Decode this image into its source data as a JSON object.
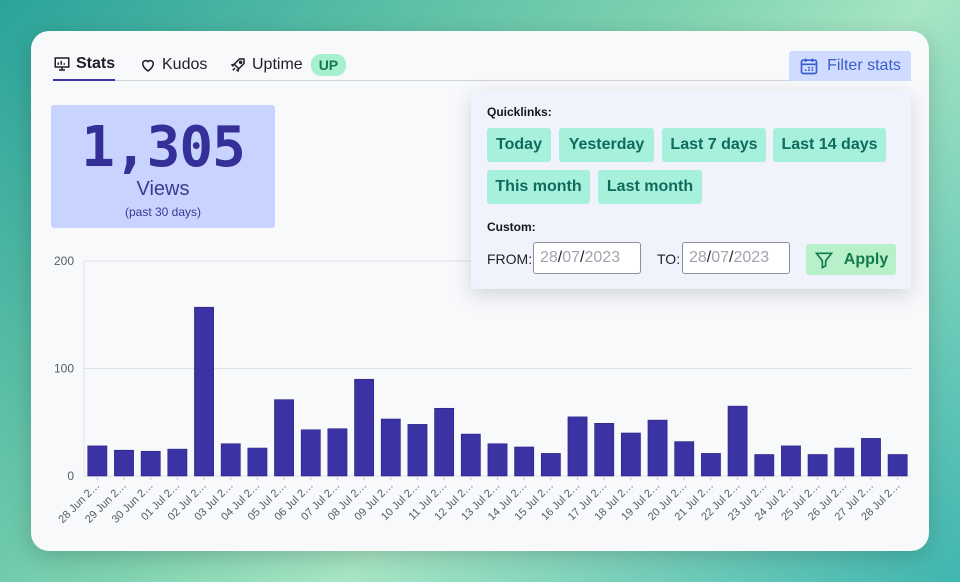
{
  "tabs": [
    {
      "label": "Stats",
      "icon": "presentation-chart-icon",
      "active": true
    },
    {
      "label": "Kudos",
      "icon": "heart-icon"
    },
    {
      "label": "Uptime",
      "icon": "rocket-icon",
      "badge": "UP"
    }
  ],
  "filter_button": {
    "label": "Filter stats",
    "icon": "calendar-icon"
  },
  "summary": {
    "value": "1,305",
    "label": "Views",
    "sub": "(past 30 days)"
  },
  "filter_panel": {
    "quicklinks_title": "Quicklinks:",
    "quicklinks": [
      "Today",
      "Yesterday",
      "Last 7 days",
      "Last 14 days",
      "This month",
      "Last month"
    ],
    "custom_title": "Custom:",
    "from_label": "FROM:",
    "to_label": "TO:",
    "from": {
      "dd": "28",
      "mm": "07",
      "yyyy": "2023"
    },
    "to": {
      "dd": "28",
      "mm": "07",
      "yyyy": "2023"
    },
    "apply_label": "Apply"
  },
  "chart_data": {
    "type": "bar",
    "categories": [
      "28 Jun 2…",
      "29 Jun 2…",
      "30 Jun 2…",
      "01 Jul 2…",
      "02 Jul 2…",
      "03 Jul 2…",
      "04 Jul 2…",
      "05 Jul 2…",
      "06 Jul 2…",
      "07 Jul 2…",
      "08 Jul 2…",
      "09 Jul 2…",
      "10 Jul 2…",
      "11 Jul 2…",
      "12 Jul 2…",
      "13 Jul 2…",
      "14 Jul 2…",
      "15 Jul 2…",
      "16 Jul 2…",
      "17 Jul 2…",
      "18 Jul 2…",
      "19 Jul 2…",
      "20 Jul 2…",
      "21 Jul 2…",
      "22 Jul 2…",
      "23 Jul 2…",
      "24 Jul 2…",
      "25 Jul 2…",
      "26 Jul 2…",
      "27 Jul 2…",
      "28 Jul 2…"
    ],
    "values": [
      28,
      24,
      23,
      25,
      157,
      30,
      26,
      71,
      43,
      44,
      90,
      53,
      48,
      63,
      39,
      30,
      27,
      21,
      55,
      49,
      40,
      52,
      32,
      21,
      65,
      20,
      28,
      20,
      26,
      35,
      20
    ],
    "ylim": [
      0,
      200
    ],
    "yticks": [
      0,
      100,
      200
    ],
    "grid": true,
    "bar_color": "#3b33a3"
  }
}
